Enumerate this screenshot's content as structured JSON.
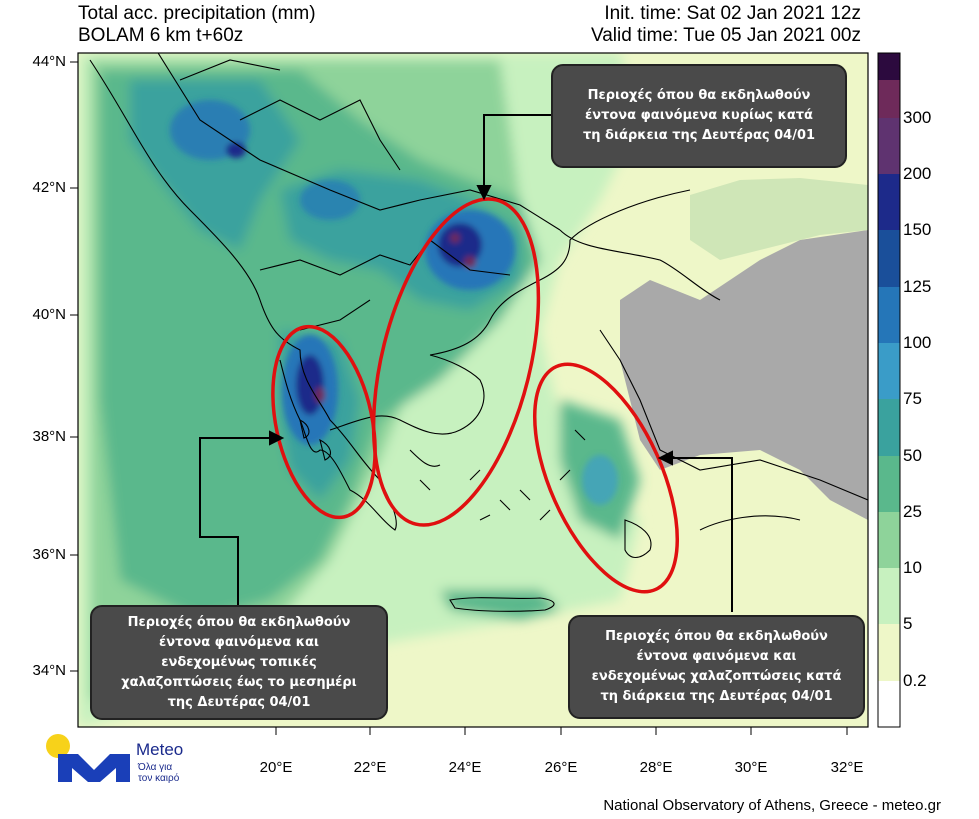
{
  "header": {
    "title_line1": "Total acc. precipitation (mm)",
    "title_line2": "BOLAM 6 km t+60z",
    "init_time": "Init. time: Sat 02 Jan 2021 12z",
    "valid_time": "Valid time: Tue 05 Jan 2021 00z"
  },
  "axes": {
    "lat_ticks": [
      "44°N",
      "42°N",
      "40°N",
      "38°N",
      "36°N",
      "34°N"
    ],
    "lon_ticks": [
      "20°E",
      "22°E",
      "24°E",
      "26°E",
      "28°E",
      "30°E",
      "32°E"
    ]
  },
  "colorbar": {
    "labels": [
      "300",
      "200",
      "150",
      "125",
      "100",
      "75",
      "50",
      "25",
      "10",
      "5",
      "0.2"
    ],
    "colors": [
      "#2c0a3e",
      "#6e2a5a",
      "#1d2a8a",
      "#1a4f9a",
      "#2576b8",
      "#3a9cc8",
      "#3aa29e",
      "#5ab88c",
      "#8ed39a",
      "#c7f1bf",
      "#eef7c8",
      "#ffffff"
    ]
  },
  "callouts": {
    "top_right": [
      "Περιοχές όπου θα εκδηλωθούν",
      "έντονα φαινόμενα κυρίως κατά",
      "τη διάρκεια της Δευτέρας 04/01"
    ],
    "bottom_left": [
      "Περιοχές όπου θα εκδηλωθούν",
      "έντονα φαινόμενα και",
      "ενδεχομένως τοπικές",
      "χαλαζοπτώσεις έως το μεσημέρι",
      "της Δευτέρας 04/01"
    ],
    "bottom_right": [
      "Περιοχές όπου θα εκδηλωθούν",
      "έντονα φαινόμενα και",
      "ενδεχομένως χαλαζοπτώσεις κατά",
      "τη διάρκεια της Δευτέρας 04/01"
    ]
  },
  "logo": {
    "name": "Meteo",
    "tagline_line1": "Όλα για",
    "tagline_line2": "τον καιρό"
  },
  "credit": "National Observatory of Athens, Greece - meteo.gr",
  "colors": {
    "ellipse": "#e01010",
    "land_no_data": "#a9a9a9",
    "logo_blue": "#1a3fb8",
    "logo_yellow": "#f7d21a"
  }
}
